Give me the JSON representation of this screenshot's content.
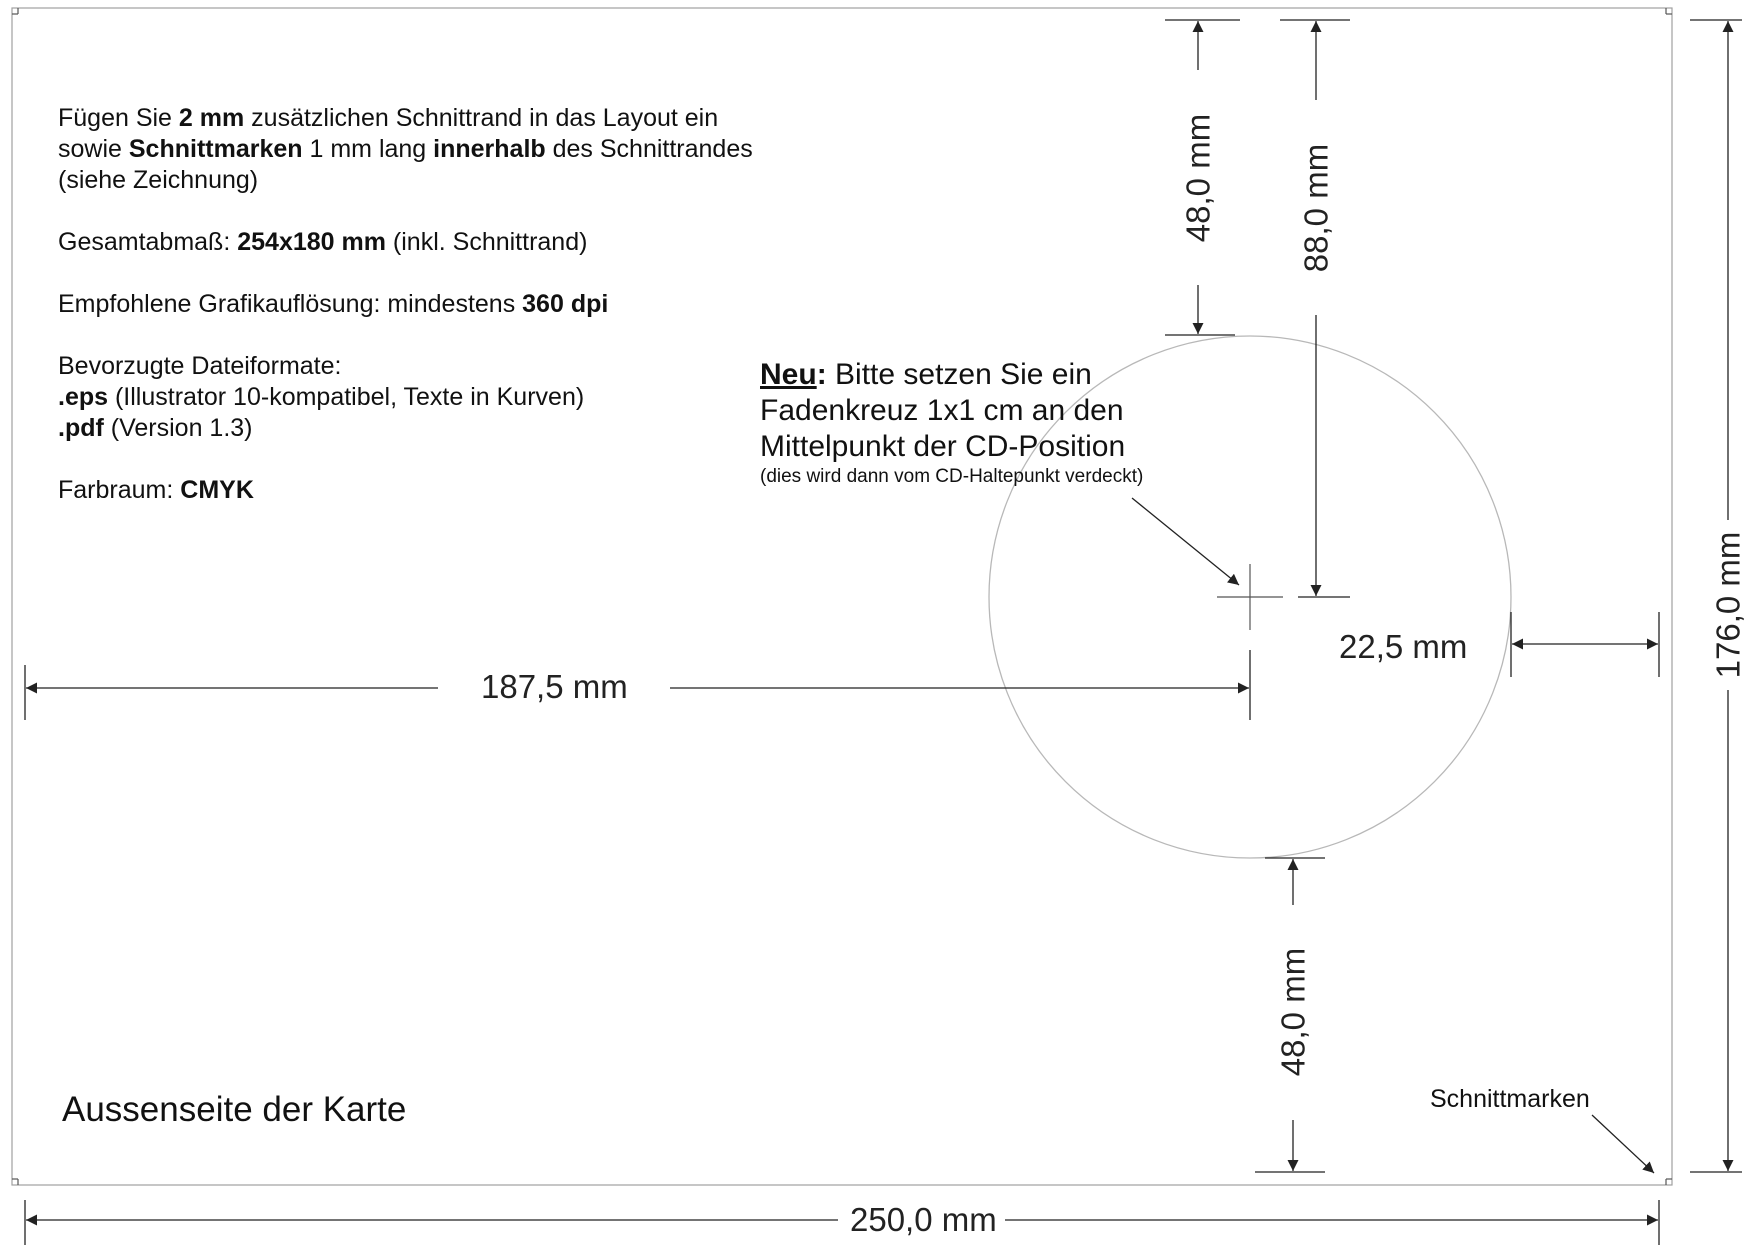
{
  "instructions": {
    "line1": {
      "a": "Fügen Sie ",
      "b": "2 mm",
      "c": " zusätzlichen Schnittrand in das Layout ein"
    },
    "line2": {
      "a": "sowie ",
      "b": "Schnittmarken",
      "c": " 1 mm lang ",
      "d": "innerhalb",
      "e": " des Schnittrandes"
    },
    "line3": "(siehe Zeichnung)",
    "size": {
      "a": "Gesamtabmaß: ",
      "b": "254x180 mm",
      "c": " (inkl. Schnittrand)"
    },
    "resolution": {
      "a": "Empfohlene Grafikauflösung: mindestens ",
      "b": "360 dpi"
    },
    "formats_title": "Bevorzugte Dateiformate:",
    "eps": {
      "a": ".eps",
      "b": " (Illustrator 10-kompatibel, Texte in Kurven)"
    },
    "pdf": {
      "a": ".pdf",
      "b": " (Version 1.3)"
    },
    "color": {
      "a": "Farbraum: ",
      "b": "CMYK"
    }
  },
  "note": {
    "neu": "Neu",
    "colon": ":",
    "line1": " Bitte setzen Sie ein",
    "line2": "Fadenkreuz 1x1 cm an den",
    "line3": "Mittelpunkt der CD-Position",
    "line4": "(dies wird dann vom CD-Haltepunkt verdeckt)"
  },
  "title": "Aussenseite der Karte",
  "cut_marks_label": "Schnittmarken",
  "dimensions": {
    "top_to_cd_top": "48,0 mm",
    "top_to_center": "88,0 mm",
    "cd_bottom_to_bottom": "48,0 mm",
    "left_to_center": "187,5 mm",
    "cd_right_to_edge": "22,5 mm",
    "total_width": "250,0 mm",
    "total_height": "176,0 mm"
  },
  "colors": {
    "line": "#222222",
    "circle": "#b8b8b8",
    "frame": "#a0a0a0"
  }
}
